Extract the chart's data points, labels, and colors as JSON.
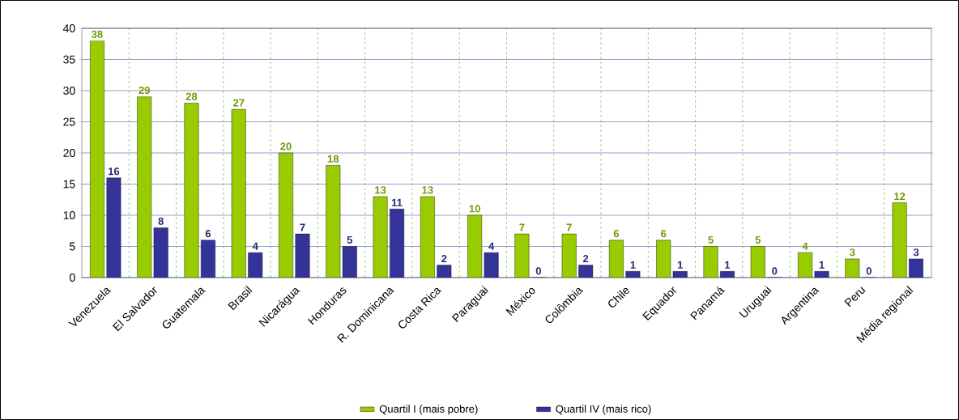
{
  "chart_data": {
    "type": "bar",
    "categories": [
      "Venezuela",
      "El Salvador",
      "Guatemala",
      "Brasil",
      "Nicarágua",
      "Honduras",
      "R. Dominicana",
      "Costa Rica",
      "Paraguai",
      "México",
      "Colômbia",
      "Chile",
      "Equador",
      "Panamá",
      "Uruguai",
      "Argentina",
      "Peru",
      "Média regional"
    ],
    "series": [
      {
        "name": "Quartil I (mais pobre)",
        "color": "#99cc00",
        "values": [
          38,
          29,
          28,
          27,
          20,
          18,
          13,
          13,
          10,
          7,
          7,
          6,
          6,
          5,
          5,
          4,
          3,
          12
        ]
      },
      {
        "name": "Quartil IV (mais rico)",
        "color": "#333399",
        "values": [
          16,
          8,
          6,
          4,
          7,
          5,
          11,
          2,
          4,
          0,
          2,
          1,
          1,
          1,
          0,
          1,
          0,
          3
        ]
      }
    ],
    "ylim": [
      0,
      40
    ],
    "yticks": [
      0,
      5,
      10,
      15,
      20,
      25,
      30,
      35,
      40
    ],
    "grid": true,
    "legend": "bottom",
    "data_labels": true
  }
}
